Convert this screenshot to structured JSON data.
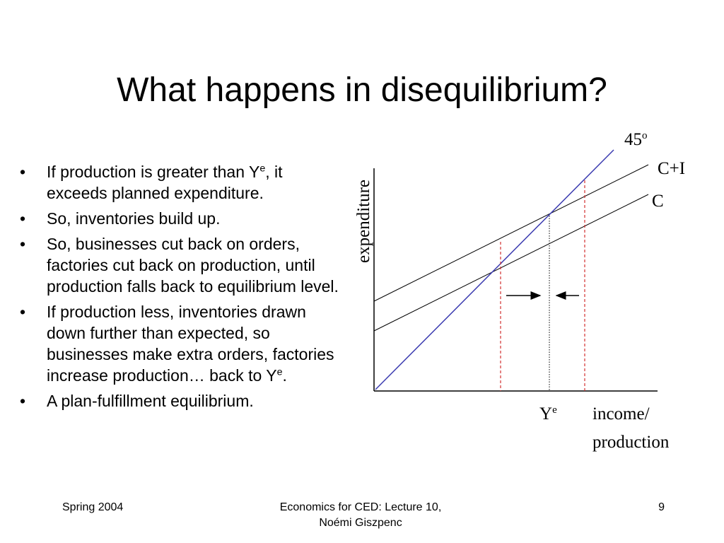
{
  "slide": {
    "title": "What happens in disequilibrium?",
    "bullets": [
      {
        "text": "If production is greater than Y",
        "sup": "e",
        "tail": ", it exceeds planned expenditure."
      },
      {
        "text": "So, inventories build up.",
        "sup": "",
        "tail": ""
      },
      {
        "text": "So, businesses cut back on orders, factories cut back on production, until production falls back to equilibrium level.",
        "sup": "",
        "tail": ""
      },
      {
        "text": "If production less, inventories drawn down further than expected, so businesses make extra orders, factories increase production… back to Y",
        "sup": "e",
        "tail": "."
      },
      {
        "text": "A plan-fulfillment equilibrium.",
        "sup": "",
        "tail": ""
      }
    ],
    "bullet_glyph": "•"
  },
  "diagram": {
    "y_axis_label": "expenditure",
    "x_axis_label_line1": "income/",
    "x_axis_label_line2": "production",
    "line_45_label": "45",
    "line_45_sup": "o",
    "line_ci_label": "C+I",
    "line_c_label": "C",
    "equilibrium_label": "Y",
    "equilibrium_sup": "e",
    "colors": {
      "line_45": "#3b3bb0",
      "dashed": "#d23030",
      "axis": "#000000",
      "dotted": "#000000"
    }
  },
  "footer": {
    "left": "Spring 2004",
    "center_line1": "Economics for CED: Lecture 10,",
    "center_line2": "Noémi Giszpenc",
    "page": "9"
  }
}
